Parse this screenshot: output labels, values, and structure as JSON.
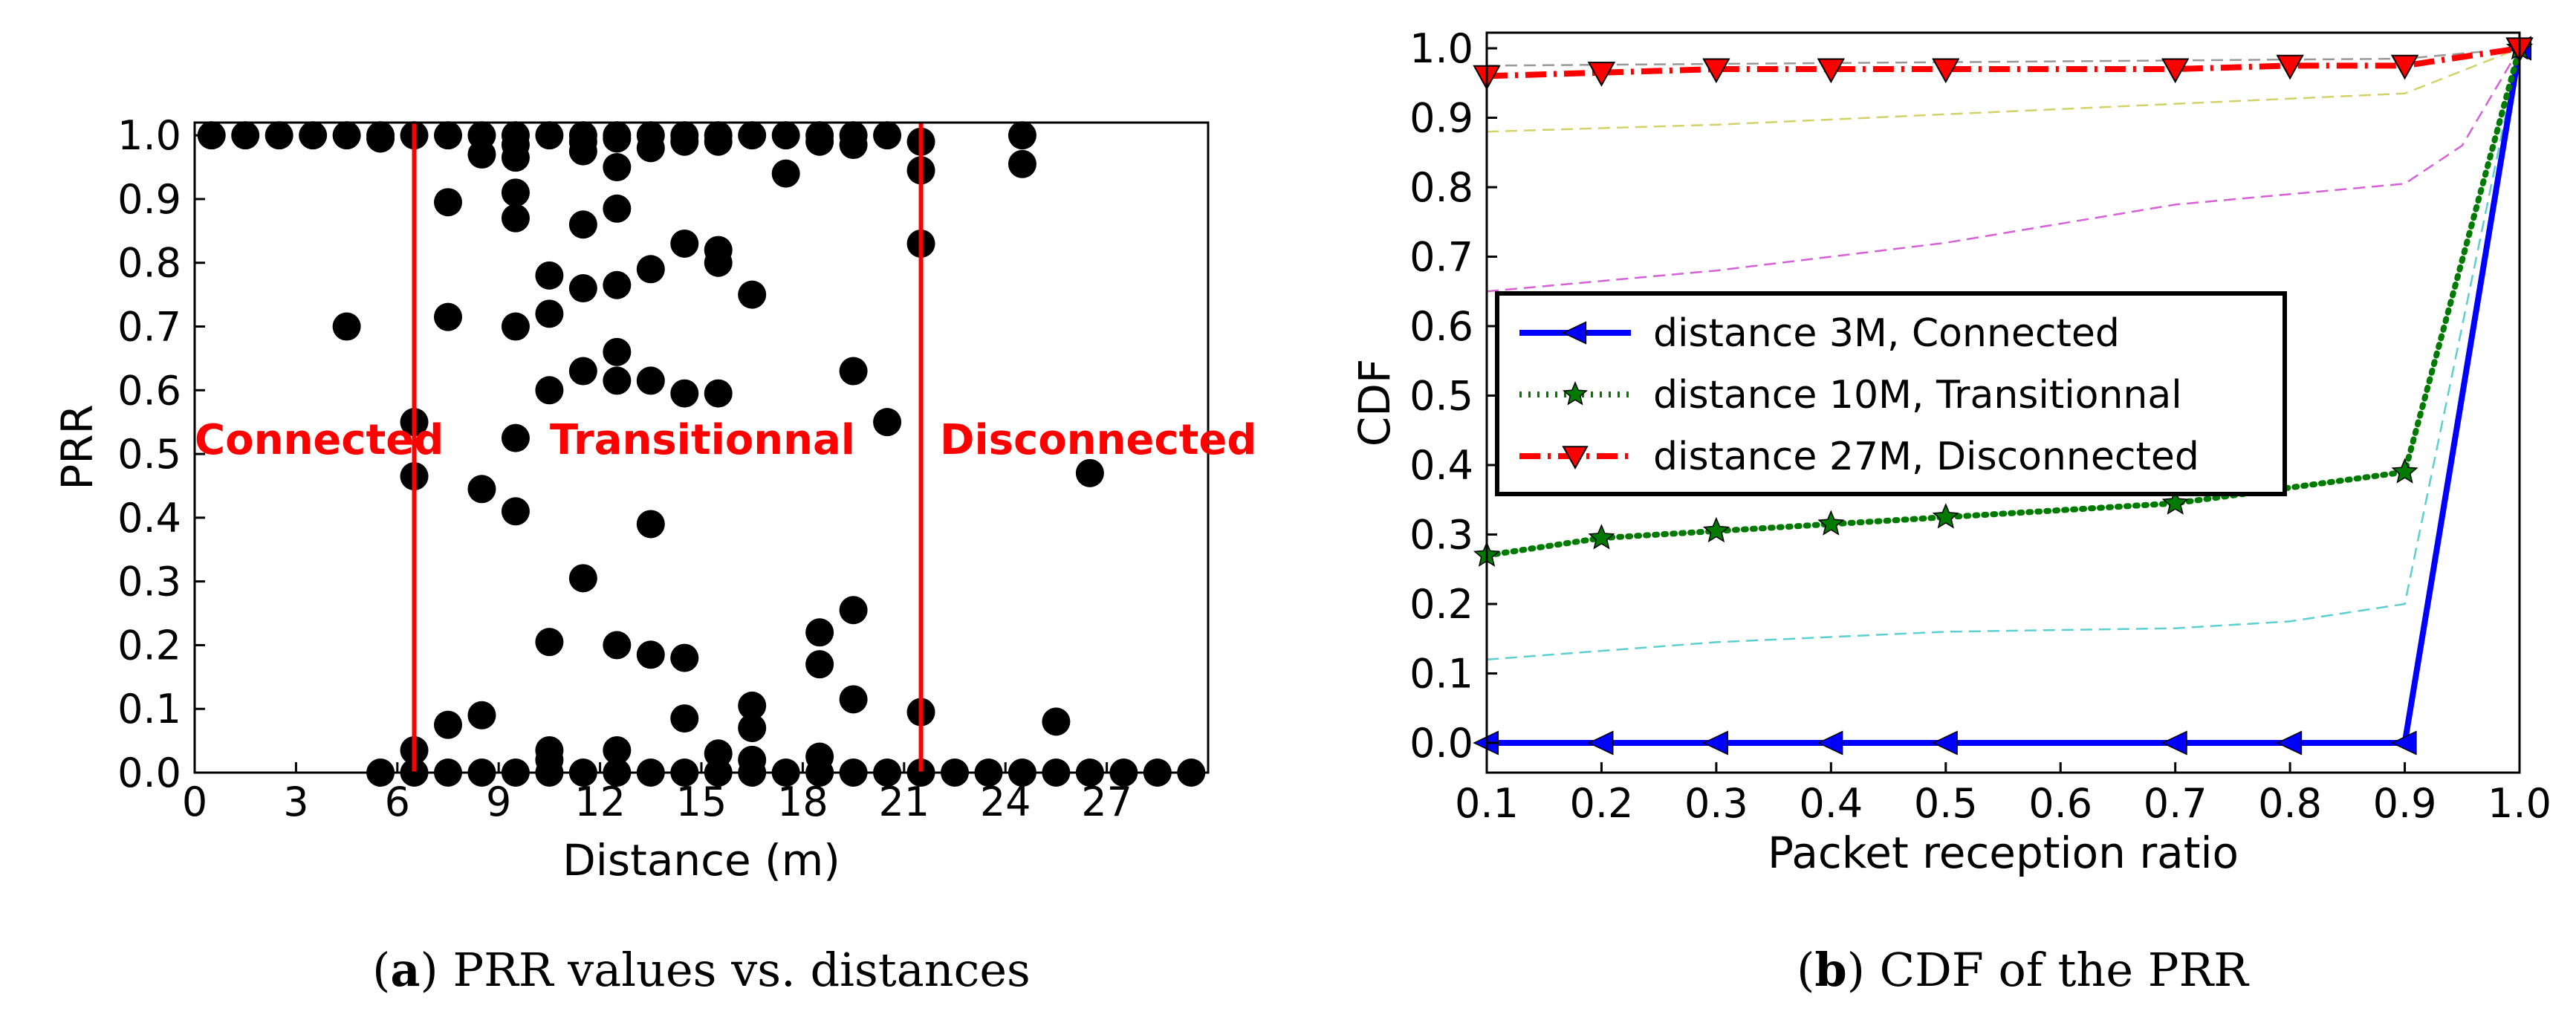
{
  "chart_data": [
    {
      "panel": "a",
      "type": "scatter",
      "title": "",
      "xlabel": "Distance (m)",
      "ylabel": "PRR",
      "xlim": [
        0,
        30
      ],
      "ylim": [
        0.0,
        1.02
      ],
      "xticks": [
        "0",
        "3",
        "6",
        "9",
        "12",
        "15",
        "18",
        "21",
        "24",
        "27"
      ],
      "yticks": [
        "0.0",
        "0.1",
        "0.2",
        "0.3",
        "0.4",
        "0.5",
        "0.6",
        "0.7",
        "0.8",
        "0.9",
        "1.0"
      ],
      "region_lines_x": [
        6.5,
        21.5
      ],
      "region_labels": [
        "Connected",
        "Transitionnal",
        "Disconnected"
      ],
      "series": [
        {
          "name": "PRR samples",
          "color": "#000000",
          "points": [
            [
              0.5,
              1.0
            ],
            [
              1.5,
              1.0
            ],
            [
              2.5,
              1.0
            ],
            [
              3.5,
              1.0
            ],
            [
              4.5,
              1.0
            ],
            [
              5.5,
              1.0
            ],
            [
              5.5,
              0.995
            ],
            [
              6.5,
              1.0
            ],
            [
              7.5,
              1.0
            ],
            [
              8.5,
              1.0
            ],
            [
              9.5,
              1.0
            ],
            [
              10.5,
              1.0
            ],
            [
              11.5,
              1.0
            ],
            [
              12.5,
              1.0
            ],
            [
              13.5,
              1.0
            ],
            [
              14.5,
              1.0
            ],
            [
              15.5,
              1.0
            ],
            [
              16.5,
              1.0
            ],
            [
              17.5,
              1.0
            ],
            [
              18.5,
              1.0
            ],
            [
              19.5,
              1.0
            ],
            [
              20.5,
              1.0
            ],
            [
              21.5,
              0.99
            ],
            [
              24.5,
              1.0
            ],
            [
              8.5,
              0.97
            ],
            [
              9.5,
              0.985
            ],
            [
              9.5,
              0.965
            ],
            [
              11.5,
              0.99
            ],
            [
              11.5,
              0.975
            ],
            [
              12.5,
              0.995
            ],
            [
              12.5,
              0.95
            ],
            [
              13.5,
              0.98
            ],
            [
              14.5,
              0.99
            ],
            [
              15.5,
              0.99
            ],
            [
              17.5,
              0.94
            ],
            [
              18.5,
              0.99
            ],
            [
              19.5,
              0.985
            ],
            [
              21.5,
              0.945
            ],
            [
              24.5,
              0.955
            ],
            [
              7.5,
              0.895
            ],
            [
              9.5,
              0.91
            ],
            [
              9.5,
              0.87
            ],
            [
              11.5,
              0.86
            ],
            [
              12.5,
              0.885
            ],
            [
              14.5,
              0.83
            ],
            [
              15.5,
              0.82
            ],
            [
              15.5,
              0.8
            ],
            [
              21.5,
              0.83
            ],
            [
              10.5,
              0.78
            ],
            [
              11.5,
              0.76
            ],
            [
              12.5,
              0.765
            ],
            [
              13.5,
              0.79
            ],
            [
              16.5,
              0.75
            ],
            [
              4.5,
              0.7
            ],
            [
              7.5,
              0.715
            ],
            [
              9.5,
              0.7
            ],
            [
              10.5,
              0.72
            ],
            [
              12.5,
              0.66
            ],
            [
              11.5,
              0.63
            ],
            [
              12.5,
              0.615
            ],
            [
              13.5,
              0.615
            ],
            [
              10.5,
              0.6
            ],
            [
              14.5,
              0.595
            ],
            [
              15.5,
              0.595
            ],
            [
              19.5,
              0.63
            ],
            [
              6.5,
              0.55
            ],
            [
              20.5,
              0.55
            ],
            [
              9.5,
              0.525
            ],
            [
              6.5,
              0.465
            ],
            [
              26.5,
              0.47
            ],
            [
              8.5,
              0.445
            ],
            [
              9.5,
              0.41
            ],
            [
              13.5,
              0.39
            ],
            [
              11.5,
              0.305
            ],
            [
              19.5,
              0.255
            ],
            [
              18.5,
              0.22
            ],
            [
              10.5,
              0.205
            ],
            [
              12.5,
              0.2
            ],
            [
              13.5,
              0.185
            ],
            [
              14.5,
              0.18
            ],
            [
              18.5,
              0.17
            ],
            [
              19.5,
              0.115
            ],
            [
              16.5,
              0.105
            ],
            [
              21.5,
              0.095
            ],
            [
              7.5,
              0.075
            ],
            [
              8.5,
              0.09
            ],
            [
              14.5,
              0.085
            ],
            [
              16.5,
              0.07
            ],
            [
              25.5,
              0.08
            ],
            [
              6.5,
              0.035
            ],
            [
              10.5,
              0.035
            ],
            [
              12.5,
              0.035
            ],
            [
              15.5,
              0.03
            ],
            [
              16.5,
              0.02
            ],
            [
              18.5,
              0.025
            ],
            [
              10.5,
              0.02
            ],
            [
              5.5,
              0.0
            ],
            [
              6.5,
              0.0
            ],
            [
              7.5,
              0.0
            ],
            [
              8.5,
              0.0
            ],
            [
              9.5,
              0.0
            ],
            [
              10.5,
              0.0
            ],
            [
              11.5,
              0.0
            ],
            [
              12.5,
              0.0
            ],
            [
              13.5,
              0.0
            ],
            [
              14.5,
              0.0
            ],
            [
              15.5,
              0.0
            ],
            [
              16.5,
              0.0
            ],
            [
              17.5,
              0.0
            ],
            [
              18.5,
              0.0
            ],
            [
              19.5,
              0.0
            ],
            [
              20.5,
              0.0
            ],
            [
              21.5,
              0.0
            ],
            [
              22.5,
              0.0
            ],
            [
              23.5,
              0.0
            ],
            [
              24.5,
              0.0
            ],
            [
              25.5,
              0.0
            ],
            [
              26.5,
              0.0
            ],
            [
              27.5,
              0.0
            ],
            [
              28.5,
              0.0
            ],
            [
              29.5,
              0.0
            ]
          ]
        }
      ]
    },
    {
      "panel": "b",
      "type": "line",
      "title": "",
      "xlabel": "Packet reception ratio",
      "ylabel": "CDF",
      "xlim": [
        0.1,
        1.0
      ],
      "ylim": [
        0.0,
        1.0
      ],
      "xticks": [
        "0.1",
        "0.2",
        "0.3",
        "0.4",
        "0.5",
        "0.6",
        "0.7",
        "0.8",
        "0.9",
        "1.0"
      ],
      "yticks": [
        "0.0",
        "0.1",
        "0.2",
        "0.3",
        "0.4",
        "0.5",
        "0.6",
        "0.7",
        "0.8",
        "0.9",
        "1.0"
      ],
      "legend_position": "center-left",
      "series": [
        {
          "name": "distance 3M, Connected",
          "color": "#0000ff",
          "style": "solid",
          "marker": "triangle-left",
          "x": [
            0.1,
            0.2,
            0.3,
            0.4,
            0.5,
            0.7,
            0.8,
            0.9,
            1.0
          ],
          "y": [
            0.0,
            0.0,
            0.0,
            0.0,
            0.0,
            0.0,
            0.0,
            0.0,
            1.0
          ]
        },
        {
          "name": "distance 10M, Transitionnal",
          "color": "#007a00",
          "style": "dotted",
          "marker": "star",
          "x": [
            0.1,
            0.2,
            0.3,
            0.4,
            0.5,
            0.7,
            0.9,
            1.0
          ],
          "y": [
            0.27,
            0.295,
            0.305,
            0.315,
            0.325,
            0.345,
            0.39,
            1.0
          ]
        },
        {
          "name": "distance 27M, Disconnected",
          "color": "#ff0000",
          "style": "dashdot",
          "marker": "triangle-down",
          "x": [
            0.1,
            0.2,
            0.3,
            0.4,
            0.5,
            0.7,
            0.8,
            0.9,
            1.0
          ],
          "y": [
            0.96,
            0.965,
            0.97,
            0.97,
            0.97,
            0.97,
            0.975,
            0.975,
            1.0
          ]
        }
      ],
      "background_series": [
        {
          "color": "#999999",
          "x": [
            0.1,
            0.9,
            1.0
          ],
          "y": [
            0.975,
            0.985,
            1.0
          ]
        },
        {
          "color": "#d2d26a",
          "x": [
            0.1,
            0.3,
            0.5,
            0.7,
            0.9,
            1.0
          ],
          "y": [
            0.88,
            0.89,
            0.905,
            0.92,
            0.935,
            1.0
          ]
        },
        {
          "color": "#d660d6",
          "x": [
            0.1,
            0.3,
            0.5,
            0.7,
            0.8,
            0.9,
            0.95,
            1.0
          ],
          "y": [
            0.65,
            0.68,
            0.72,
            0.775,
            0.79,
            0.805,
            0.86,
            1.0
          ]
        },
        {
          "color": "#5ecfcf",
          "x": [
            0.1,
            0.3,
            0.5,
            0.7,
            0.8,
            0.9,
            1.0
          ],
          "y": [
            0.12,
            0.145,
            0.16,
            0.165,
            0.175,
            0.2,
            1.0
          ]
        }
      ]
    }
  ],
  "captions": {
    "a_letter": "a",
    "a_text": " PRR values vs. distances",
    "b_letter": "b",
    "b_text": " CDF of the PRR"
  }
}
